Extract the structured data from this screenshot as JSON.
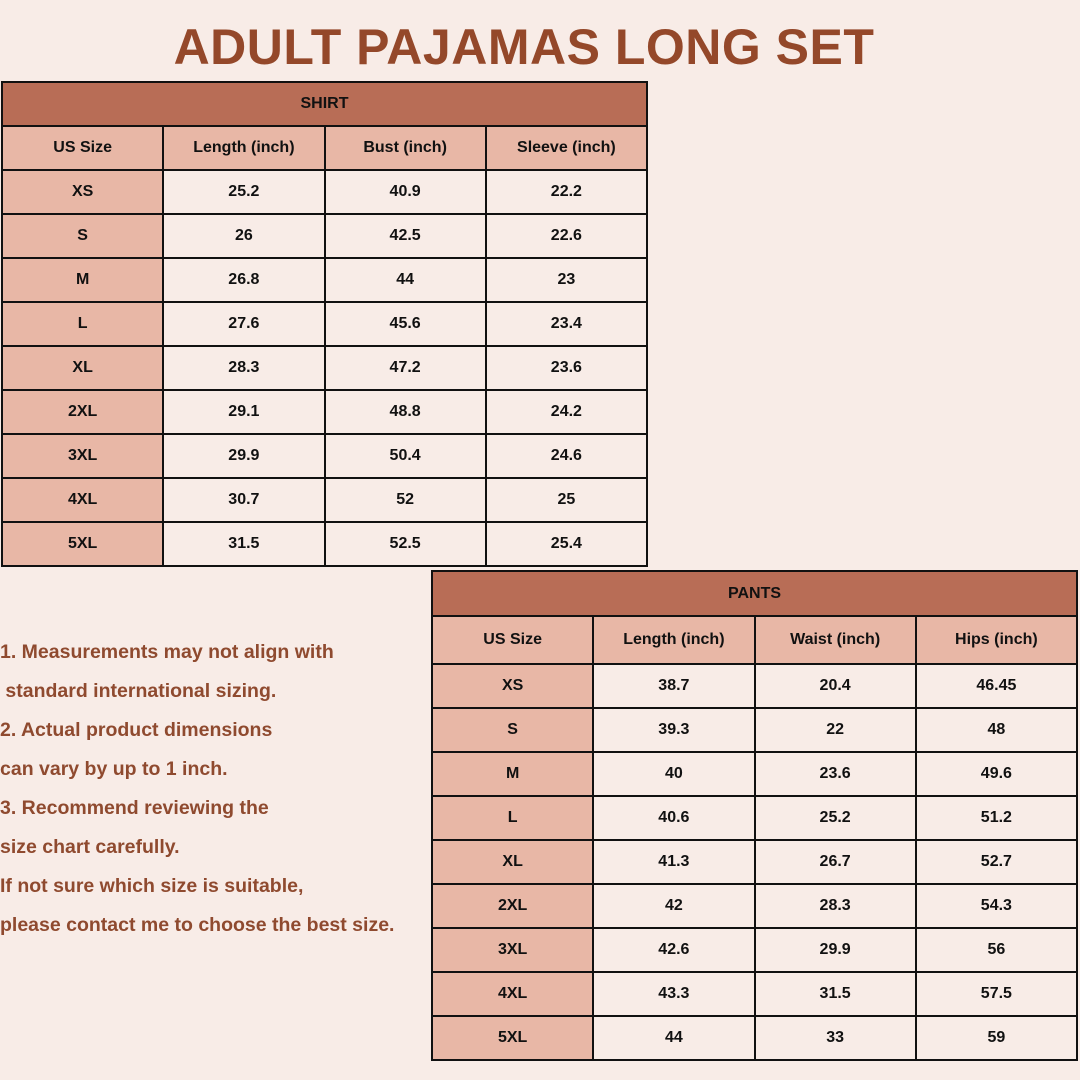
{
  "title": "ADULT PAJAMAS LONG SET",
  "colors": {
    "background": "#f8ece7",
    "header": "#b86d56",
    "size_column": "#e8b7a6",
    "text_accent": "#94482a"
  },
  "shirt": {
    "title": "SHIRT",
    "columns": [
      "US Size",
      "Length (inch)",
      "Bust (inch)",
      "Sleeve (inch)"
    ],
    "rows": [
      [
        "XS",
        "25.2",
        "40.9",
        "22.2"
      ],
      [
        "S",
        "26",
        "42.5",
        "22.6"
      ],
      [
        "M",
        "26.8",
        "44",
        "23"
      ],
      [
        "L",
        "27.6",
        "45.6",
        "23.4"
      ],
      [
        "XL",
        "28.3",
        "47.2",
        "23.6"
      ],
      [
        "2XL",
        "29.1",
        "48.8",
        "24.2"
      ],
      [
        "3XL",
        "29.9",
        "50.4",
        "24.6"
      ],
      [
        "4XL",
        "30.7",
        "52",
        "25"
      ],
      [
        "5XL",
        "31.5",
        "52.5",
        "25.4"
      ]
    ]
  },
  "pants": {
    "title": "PANTS",
    "columns": [
      "US Size",
      "Length (inch)",
      "Waist (inch)",
      "Hips (inch)"
    ],
    "rows": [
      [
        "XS",
        "38.7",
        "20.4",
        "46.45"
      ],
      [
        "S",
        "39.3",
        "22",
        "48"
      ],
      [
        "M",
        "40",
        "23.6",
        "49.6"
      ],
      [
        "L",
        "40.6",
        "25.2",
        "51.2"
      ],
      [
        "XL",
        "41.3",
        "26.7",
        "52.7"
      ],
      [
        "2XL",
        "42",
        "28.3",
        "54.3"
      ],
      [
        "3XL",
        "42.6",
        "29.9",
        "56"
      ],
      [
        "4XL",
        "43.3",
        "31.5",
        "57.5"
      ],
      [
        "5XL",
        "44",
        "33",
        "59"
      ]
    ]
  },
  "notes": [
    "1. Measurements may not align with",
    " standard international sizing.",
    "2. Actual product dimensions",
    "can vary by up to 1 inch.",
    "3. Recommend reviewing the",
    "size chart carefully.",
    "If not sure which size is suitable,",
    "please contact me to choose the best size."
  ]
}
